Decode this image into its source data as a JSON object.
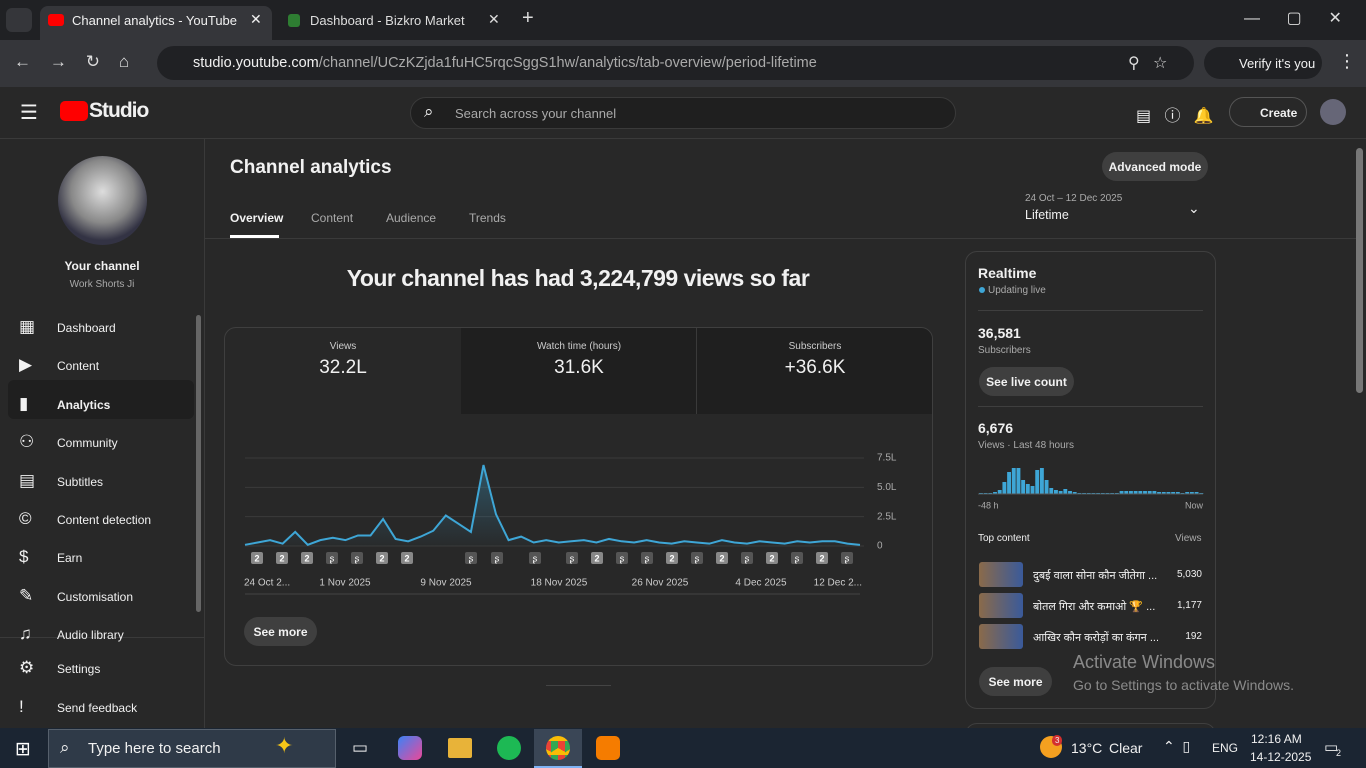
{
  "browser": {
    "tabs": [
      {
        "title": "Channel analytics - YouTube Studio"
      },
      {
        "title": "Dashboard - Bizkro Market"
      }
    ],
    "url_host": "studio.youtube.com",
    "url_path": "/channel/UCzKZjda1fuHC5rqcSggS1hw/analytics/tab-overview/period-lifetime",
    "profile_button": "Verify it's you"
  },
  "header": {
    "logo": "Studio",
    "search_placeholder": "Search across your channel",
    "create": "Create"
  },
  "sidebar": {
    "channel_name": "Your channel",
    "handle": "Work Shorts Ji",
    "nav": [
      "Dashboard",
      "Content",
      "Analytics",
      "Community",
      "Subtitles",
      "Content detection",
      "Earn",
      "Customisation",
      "Audio library"
    ],
    "footer": [
      "Settings",
      "Send feedback"
    ]
  },
  "analytics": {
    "title": "Channel analytics",
    "advanced_mode": "Advanced mode",
    "tabs": [
      "Overview",
      "Content",
      "Audience",
      "Trends"
    ],
    "date_range": "24 Oct – 12 Dec 2025",
    "period": "Lifetime",
    "headline": "Your channel has had 3,224,799 views so far",
    "metrics": [
      {
        "label": "Views",
        "value": "32.2L"
      },
      {
        "label": "Watch time (hours)",
        "value": "31.6K"
      },
      {
        "label": "Subscribers",
        "value": "+36.6K"
      }
    ],
    "chart": {
      "type": "line",
      "color": "#3ea6d6",
      "x_labels": [
        "24 Oct 2...",
        "1 Nov 2025",
        "9 Nov 2025",
        "18 Nov 2025",
        "26 Nov 2025",
        "4 Dec 2025",
        "12 Dec 2..."
      ],
      "values": [
        10000,
        30000,
        50000,
        20000,
        120000,
        10000,
        50000,
        70000,
        50000,
        90000,
        90000,
        230000,
        60000,
        40000,
        80000,
        130000,
        260000,
        190000,
        120000,
        690000,
        270000,
        50000,
        80000,
        30000,
        50000,
        30000,
        40000,
        50000,
        30000,
        60000,
        40000,
        30000,
        50000,
        30000,
        20000,
        40000,
        30000,
        20000,
        50000,
        30000,
        20000,
        40000,
        30000,
        20000,
        40000,
        30000,
        40000,
        40000,
        20000,
        10000
      ],
      "ylim": [
        0,
        750000
      ],
      "yticks": [
        0,
        {
          "value": 250000,
          "label": "2.5L"
        },
        {
          "value": 500000,
          "label": "5.0L"
        },
        {
          "value": 750000,
          "label": "7.5L"
        }
      ],
      "grid": true,
      "markers": [
        "2",
        "2",
        "2",
        null,
        null,
        "2",
        "2",
        null,
        null,
        null,
        null,
        "2",
        null,
        null,
        "2",
        null,
        "2",
        null,
        "2",
        null,
        "2",
        null
      ]
    },
    "see_more": "See more"
  },
  "realtime": {
    "title": "Realtime",
    "status": "Updating live",
    "subscribers": "36,581",
    "subscribers_label": "Subscribers",
    "see_live_count": "See live count",
    "views": "6,676",
    "views_label": "Views · Last 48 hours",
    "chart": {
      "type": "bar",
      "color": "#3ea6d6",
      "values": [
        1,
        1,
        1,
        2,
        4,
        12,
        22,
        26,
        26,
        14,
        10,
        8,
        24,
        26,
        14,
        6,
        4,
        3,
        5,
        3,
        2,
        1,
        1,
        1,
        1,
        1,
        1,
        1,
        1,
        1,
        3,
        3,
        3,
        3,
        3,
        3,
        3,
        3,
        2,
        2,
        2,
        2,
        2,
        1,
        2,
        2,
        2,
        1
      ],
      "x_start": "-48 h",
      "x_end": "Now"
    },
    "top_content_label": "Top content",
    "top_content_views_label": "Views",
    "top_content": [
      {
        "title": "दुबई वाला सोना कौन जीतेगा ...",
        "views": "5,030"
      },
      {
        "title": "बोतल गिरा और कमाओ 🏆 ...",
        "views": "1,177"
      },
      {
        "title": "आखिर कौन करोड़ों का कंगन ...",
        "views": "192"
      }
    ],
    "see_more": "See more"
  },
  "watermark": {
    "title": "Activate Windows",
    "text": "Go to Settings to activate Windows."
  },
  "taskbar": {
    "search": "Type here to search",
    "weather_badge": "3",
    "temperature": "13°C",
    "condition": "Clear",
    "language": "ENG",
    "time": "12:16 AM",
    "date": "14-12-2025",
    "notifications": "2"
  }
}
